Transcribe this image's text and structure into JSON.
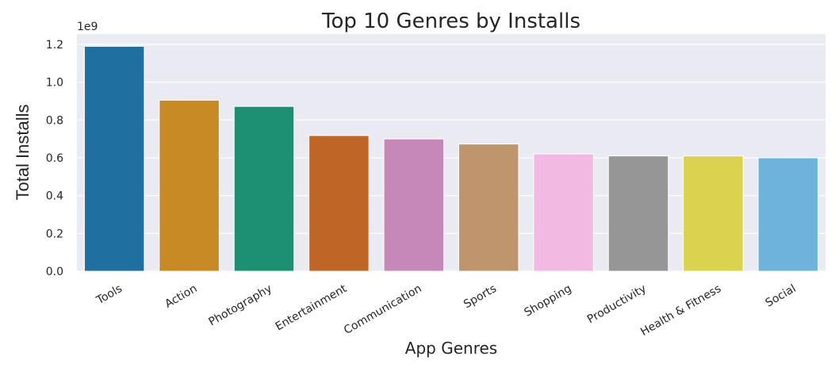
{
  "chart_data": {
    "type": "bar",
    "title": "Top 10 Genres by Installs",
    "xlabel": "App Genres",
    "ylabel": "Total Installs",
    "y_offset_label": "1e9",
    "y_scale": 1000000000,
    "ylim": [
      0,
      1.2
    ],
    "yticks": [
      0.0,
      0.2,
      0.4,
      0.6,
      0.8,
      1.0,
      1.2
    ],
    "ytick_labels": [
      "0.0",
      "0.2",
      "0.4",
      "0.6",
      "0.8",
      "1.0",
      "1.2"
    ],
    "grid": true,
    "categories": [
      "Tools",
      "Action",
      "Photography",
      "Entertainment",
      "Communication",
      "Sports",
      "Shopping",
      "Productivity",
      "Health & Fitness",
      "Social"
    ],
    "values": [
      1.19,
      0.905,
      0.872,
      0.718,
      0.7,
      0.673,
      0.621,
      0.61,
      0.61,
      0.6
    ],
    "colors": [
      "#1f6fa0",
      "#c78a25",
      "#1c9070",
      "#bf6525",
      "#c588b8",
      "#bf956e",
      "#f2baE2",
      "#969696",
      "#dbd34e",
      "#6db3dc"
    ],
    "background": "#eaeaf2"
  }
}
